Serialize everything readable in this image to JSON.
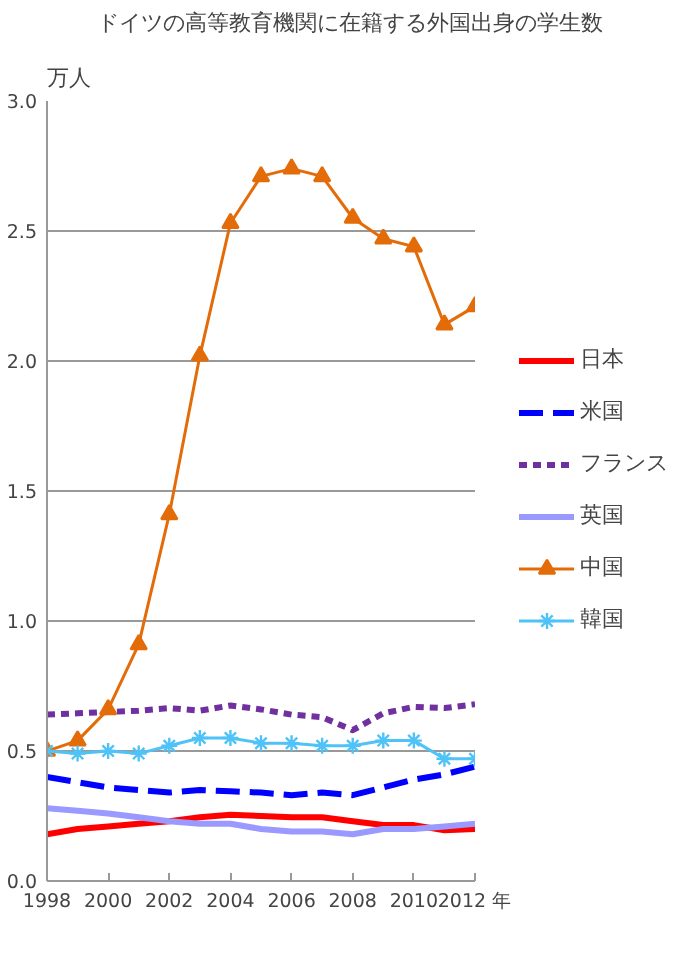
{
  "chart_data": {
    "type": "line",
    "title": "ドイツの高等教育機関に在籍する外国出身の学生数",
    "ylabel": "万人",
    "x": [
      1998,
      1999,
      2000,
      2001,
      2002,
      2003,
      2004,
      2005,
      2006,
      2007,
      2008,
      2009,
      2010,
      2011,
      2012
    ],
    "xlim": [
      1998,
      2012
    ],
    "xticks": [
      1998,
      2000,
      2002,
      2004,
      2006,
      2008,
      2010,
      {
        "value": 2012,
        "label": "2012 年"
      }
    ],
    "ylim": [
      0,
      3.0
    ],
    "yticks": [
      {
        "value": 0,
        "label": "0.0"
      },
      0.5,
      {
        "value": 1,
        "label": "1.0"
      },
      1.5,
      {
        "value": 2,
        "label": "2.0"
      },
      2.5,
      {
        "value": 3,
        "label": "3.0"
      }
    ],
    "grid": "y",
    "legend": "right",
    "series": [
      {
        "name": "日本",
        "color": "#ff0000",
        "line_style": "solid",
        "marker": "none",
        "values": [
          0.18,
          0.2,
          0.21,
          0.22,
          0.23,
          0.245,
          0.255,
          0.25,
          0.245,
          0.245,
          0.23,
          0.215,
          0.215,
          0.195,
          0.2
        ]
      },
      {
        "name": "米国",
        "color": "#0000ff",
        "line_style": "dashed",
        "marker": "none",
        "values": [
          0.4,
          0.38,
          0.36,
          0.35,
          0.34,
          0.35,
          0.345,
          0.34,
          0.33,
          0.34,
          0.33,
          0.36,
          0.39,
          0.41,
          0.44
        ]
      },
      {
        "name": "フランス",
        "color": "#7030a0",
        "line_style": "dotted",
        "marker": "none",
        "values": [
          0.64,
          0.645,
          0.65,
          0.655,
          0.665,
          0.655,
          0.675,
          0.66,
          0.64,
          0.63,
          0.58,
          0.645,
          0.67,
          0.665,
          0.68
        ]
      },
      {
        "name": "英国",
        "color": "#9999ff",
        "line_style": "solid",
        "marker": "none",
        "values": [
          0.28,
          0.27,
          0.26,
          0.245,
          0.23,
          0.22,
          0.22,
          0.2,
          0.19,
          0.19,
          0.18,
          0.2,
          0.2,
          0.21,
          0.22
        ]
      },
      {
        "name": "中国",
        "color": "#e36c09",
        "line_style": "solid",
        "marker": "triangle",
        "values": [
          0.5,
          0.54,
          0.66,
          0.91,
          1.41,
          2.02,
          2.53,
          2.71,
          2.74,
          2.71,
          2.55,
          2.47,
          2.44,
          2.14,
          2.21
        ]
      },
      {
        "name": "韓国",
        "color": "#4fc3f7",
        "line_style": "solid",
        "marker": "cross",
        "values": [
          0.5,
          0.49,
          0.5,
          0.49,
          0.52,
          0.55,
          0.55,
          0.53,
          0.53,
          0.52,
          0.52,
          0.54,
          0.54,
          0.47,
          0.47
        ]
      }
    ]
  }
}
